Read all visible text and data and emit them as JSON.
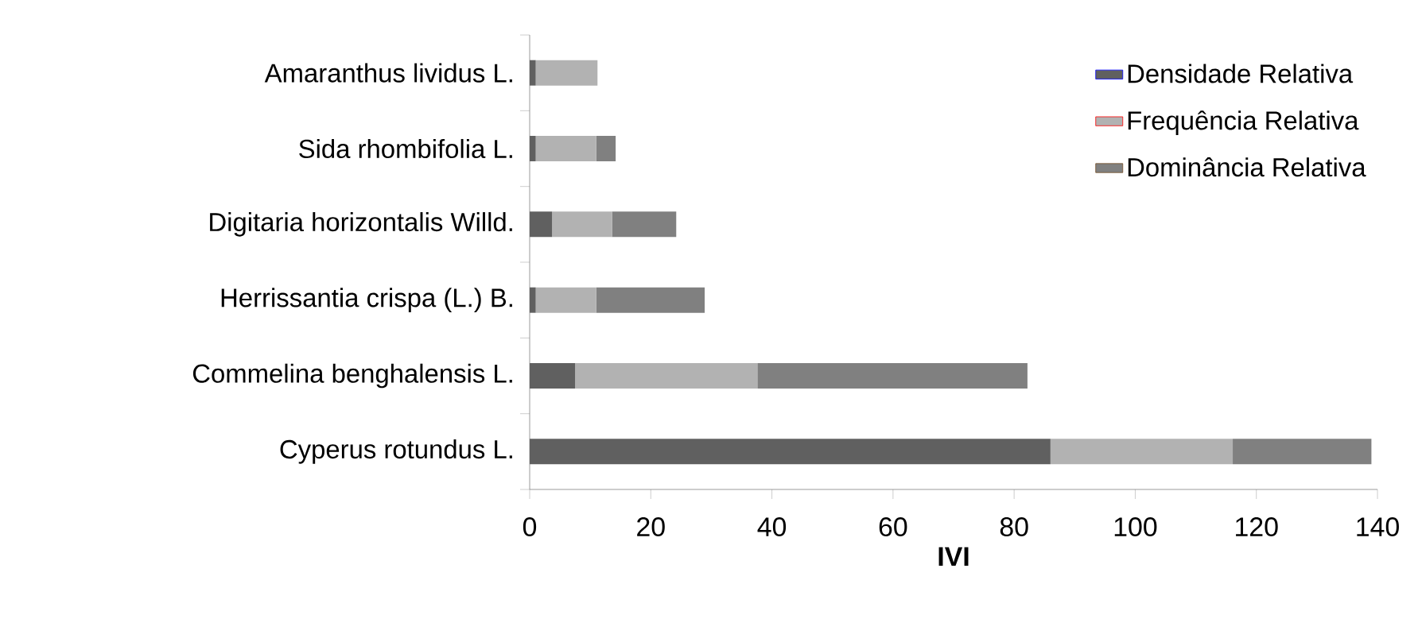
{
  "chart_data": {
    "type": "bar",
    "orientation": "horizontal",
    "stacked": true,
    "xlabel": "IVI",
    "categories": [
      "Amaranthus lividus L.",
      "Sida rhombifolia L.",
      "Digitaria horizontalis Willd.",
      "Herrissantia crispa (L.) B.",
      "Commelina benghalensis L.",
      "Cyperus rotundus L."
    ],
    "series": [
      {
        "name": "Densidade Relativa",
        "color": "#606060",
        "values": [
          1.0,
          1.0,
          3.7,
          1.0,
          7.5,
          86.0
        ]
      },
      {
        "name": "Frequência Relativa",
        "color": "#b2b2b2",
        "values": [
          10.2,
          10.0,
          9.9,
          10.0,
          30.1,
          30.1
        ]
      },
      {
        "name": "Dominância Relativa",
        "color": "#808080",
        "values": [
          0,
          3.2,
          10.6,
          17.9,
          44.6,
          22.9
        ]
      }
    ],
    "xlim": [
      0,
      140
    ],
    "xticks": [
      0,
      20,
      40,
      60,
      80,
      100,
      120,
      140
    ],
    "legend": "top right",
    "grid": false
  }
}
